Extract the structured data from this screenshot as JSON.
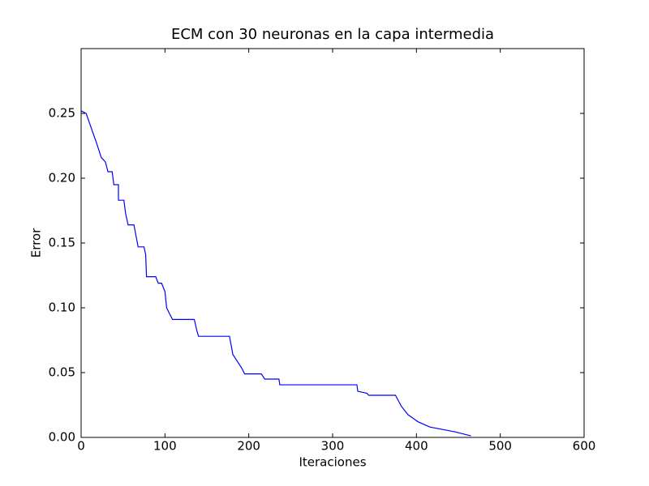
{
  "chart_data": {
    "type": "line",
    "title": "ECM con 30 neuronas en la capa intermedia",
    "xlabel": "Iteraciones",
    "ylabel": "Error",
    "color": "#0000ff",
    "x": [
      0,
      6,
      19,
      24,
      29,
      32,
      37,
      39,
      44.5,
      44.5,
      51,
      53,
      56,
      63,
      68,
      75,
      77,
      78,
      89,
      92,
      96,
      100,
      102,
      105,
      109,
      135,
      138,
      140,
      177,
      181,
      187,
      192,
      195,
      215,
      219,
      236,
      237,
      329,
      330,
      341,
      343,
      375,
      382,
      390,
      402,
      416,
      445,
      465
    ],
    "values": [
      0.252,
      0.25,
      0.226,
      0.216,
      0.2125,
      0.205,
      0.205,
      0.195,
      0.195,
      0.183,
      0.183,
      0.173,
      0.164,
      0.164,
      0.147,
      0.147,
      0.141,
      0.124,
      0.124,
      0.119,
      0.119,
      0.1125,
      0.1,
      0.096,
      0.091,
      0.091,
      0.0825,
      0.078,
      0.078,
      0.064,
      0.058,
      0.053,
      0.049,
      0.049,
      0.045,
      0.045,
      0.0406,
      0.0406,
      0.0356,
      0.034,
      0.0325,
      0.0325,
      0.024,
      0.0175,
      0.012,
      0.008,
      0.0044,
      0.0012
    ],
    "xlim": [
      0,
      600
    ],
    "xticks": [
      0,
      100,
      200,
      300,
      400,
      500,
      600
    ],
    "ylim": [
      0,
      0.3
    ],
    "yticks": [
      {
        "value": 0,
        "label": "0.00"
      },
      {
        "value": 0.05,
        "label": "0.05"
      },
      {
        "value": 0.1,
        "label": "0.10"
      },
      {
        "value": 0.15,
        "label": "0.15"
      },
      {
        "value": 0.2,
        "label": "0.20"
      },
      {
        "value": 0.25,
        "label": "0.25"
      }
    ]
  }
}
